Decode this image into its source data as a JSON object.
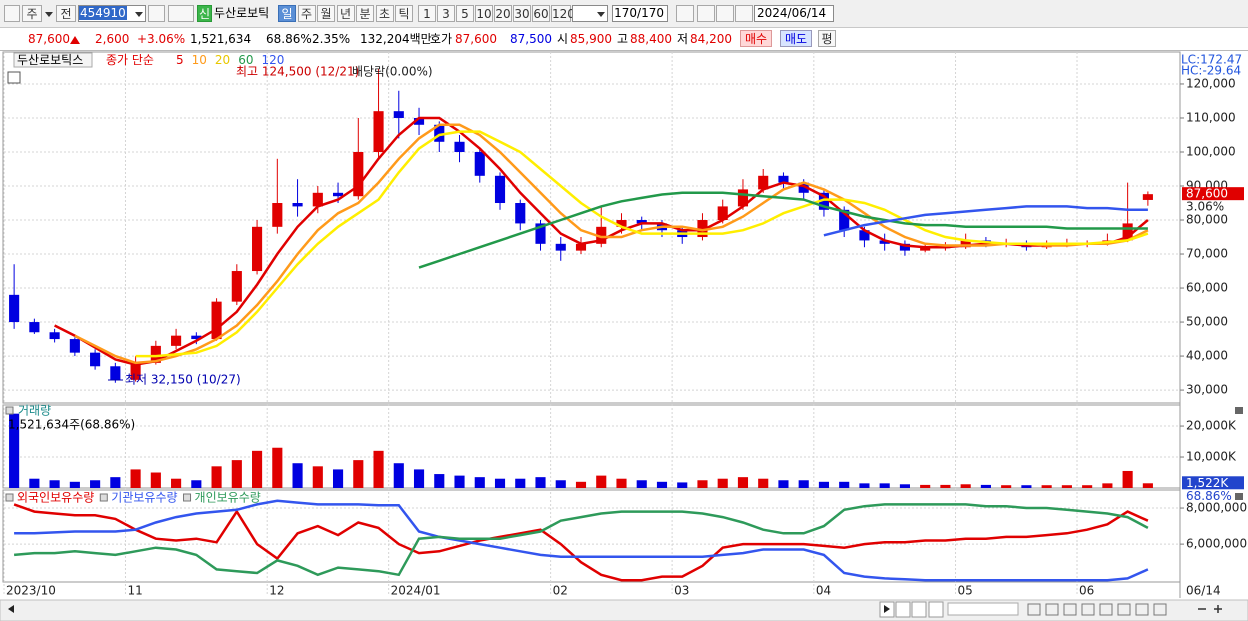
{
  "toolbar": {
    "market": "주",
    "scope": "전",
    "code": "454910",
    "badge": "신",
    "name": "두산로보틱",
    "periods": [
      "일",
      "주",
      "월",
      "년",
      "분",
      "초",
      "틱"
    ],
    "intervals": [
      "1",
      "3",
      "5",
      "10",
      "20",
      "30",
      "60",
      "120"
    ],
    "count": "170/170",
    "date": "2024/06/14"
  },
  "quote": {
    "price": "87,600",
    "change": "2,600",
    "rate": "+3.06%",
    "volume": "1,521,634",
    "turnover": "68.86%",
    "ratio": "2.35%",
    "amount": "132,204백만",
    "bid_label": "호가",
    "ask": "87,600",
    "bid": "87,500",
    "open_label": "시",
    "open": "85,900",
    "high_label": "고",
    "high": "88,400",
    "low_label": "저",
    "low": "84,200",
    "buy": "매수",
    "sell": "매도",
    "avg": "평"
  },
  "chart_data": [
    {
      "type": "candlestick",
      "legend_name": "두산로보틱스",
      "legend_label": "종가 단순",
      "annotations": [
        "최고 124,500 (12/21)",
        "배당락(0.00%)",
        "최저 32,150 (10/27)"
      ],
      "lc": "LC:172.47",
      "hc": "HC:-29.64",
      "up_color": "#e00000",
      "down_color": "#0000e0",
      "open": [
        58000,
        50000,
        47000,
        45000,
        41000,
        37000,
        33000,
        38000,
        43000,
        46000,
        45000,
        56000,
        65000,
        78000,
        85000,
        84000,
        88000,
        87000,
        100000,
        112000,
        110000,
        108000,
        103000,
        100000,
        93000,
        85000,
        79000,
        73000,
        71000,
        73000,
        78000,
        80000,
        79000,
        77000,
        75000,
        80000,
        84000,
        89000,
        93000,
        91000,
        88000,
        83000,
        77000,
        74000,
        73000,
        71000,
        72000,
        72000,
        74000,
        73000,
        73000,
        72000,
        73000,
        73000,
        73000,
        74000,
        85900
      ],
      "high": [
        67000,
        51000,
        48000,
        45500,
        42000,
        38000,
        40000,
        44500,
        48000,
        47000,
        57000,
        67000,
        80000,
        98000,
        92000,
        90000,
        91000,
        110000,
        124500,
        118000,
        113000,
        109000,
        105000,
        101000,
        94000,
        86000,
        80000,
        75000,
        75000,
        84000,
        82000,
        81000,
        80000,
        78000,
        82000,
        86000,
        92000,
        95000,
        94000,
        92000,
        89000,
        84000,
        78000,
        76000,
        74000,
        73000,
        73500,
        76000,
        75000,
        74500,
        74000,
        74000,
        74500,
        74000,
        76000,
        91000,
        88400
      ],
      "low": [
        48000,
        46500,
        44000,
        40000,
        36000,
        32150,
        32500,
        37500,
        42000,
        43500,
        44500,
        55000,
        64000,
        76000,
        81000,
        82000,
        85000,
        86000,
        98000,
        104000,
        105000,
        100000,
        97000,
        91000,
        83000,
        77000,
        71000,
        68000,
        70000,
        72000,
        76000,
        77000,
        75000,
        73000,
        74000,
        79000,
        83000,
        88000,
        89000,
        86000,
        81000,
        75000,
        72000,
        71000,
        69500,
        70500,
        71000,
        71500,
        72000,
        72000,
        71000,
        71500,
        72000,
        72000,
        72500,
        73500,
        84200
      ],
      "close": [
        50000,
        47000,
        45000,
        41000,
        37000,
        33000,
        38000,
        43000,
        46000,
        45000,
        56000,
        65000,
        78000,
        85000,
        84000,
        88000,
        87000,
        100000,
        112000,
        110000,
        108000,
        103000,
        100000,
        93000,
        85000,
        79000,
        73000,
        71000,
        73000,
        78000,
        80000,
        79000,
        77000,
        75000,
        80000,
        84000,
        89000,
        93000,
        91000,
        88000,
        83000,
        77000,
        74000,
        73000,
        71000,
        72000,
        72000,
        74000,
        73000,
        73000,
        72000,
        73000,
        73000,
        73000,
        74000,
        79000,
        87600
      ],
      "series": [
        {
          "name": "5",
          "color": "#e00000",
          "values": [
            null,
            null,
            49000,
            46000,
            42500,
            39000,
            37500,
            38500,
            41500,
            44500,
            48000,
            53000,
            61000,
            70000,
            78000,
            84000,
            86000,
            90000,
            98000,
            105000,
            110000,
            110000,
            106000,
            101000,
            95000,
            88000,
            82000,
            76000,
            73000,
            74000,
            77000,
            79000,
            79000,
            77000,
            77000,
            80000,
            84000,
            89000,
            91000,
            90000,
            87000,
            82000,
            77000,
            74000,
            72500,
            72000,
            72000,
            72500,
            73000,
            73000,
            72500,
            72500,
            73000,
            73000,
            73000,
            75000,
            80000
          ]
        },
        {
          "name": "10",
          "color": "#ff9a1a",
          "values": [
            null,
            null,
            null,
            46000,
            43000,
            40000,
            38000,
            38500,
            40000,
            42000,
            45000,
            49000,
            55000,
            62000,
            70000,
            77000,
            82000,
            85000,
            91000,
            98000,
            104000,
            108000,
            108000,
            105000,
            100000,
            94000,
            88000,
            82000,
            77000,
            75000,
            75000,
            77000,
            78000,
            78000,
            77000,
            78000,
            81000,
            85000,
            89000,
            91000,
            89000,
            86000,
            82000,
            78000,
            75000,
            73000,
            72500,
            72500,
            72500,
            73000,
            73000,
            72500,
            72500,
            73000,
            73000,
            74000,
            77000
          ]
        },
        {
          "name": "20",
          "color": "#ffee00",
          "values": [
            null,
            null,
            null,
            null,
            null,
            null,
            40000,
            40000,
            40500,
            41000,
            43000,
            47000,
            53000,
            60000,
            67000,
            73000,
            78000,
            82000,
            86000,
            94000,
            101000,
            105000,
            106000,
            106000,
            103000,
            100000,
            95000,
            90000,
            85000,
            81000,
            78000,
            76000,
            76000,
            76000,
            76000,
            76000,
            77000,
            79000,
            82000,
            84000,
            86000,
            86000,
            85000,
            83000,
            80000,
            77000,
            75000,
            74000,
            73500,
            73000,
            73000,
            73000,
            73000,
            73000,
            73500,
            74000,
            76000
          ]
        },
        {
          "name": "60",
          "color": "#22994a",
          "values": [
            null,
            null,
            null,
            null,
            null,
            null,
            null,
            null,
            null,
            null,
            null,
            null,
            null,
            null,
            null,
            null,
            null,
            null,
            null,
            null,
            66000,
            68000,
            70000,
            72000,
            74000,
            76000,
            78000,
            80000,
            82000,
            84000,
            85500,
            86500,
            87500,
            88000,
            88000,
            88000,
            87500,
            87000,
            86500,
            86000,
            84000,
            82500,
            81000,
            80000,
            79000,
            78500,
            78500,
            78000,
            78000,
            78000,
            78000,
            78000,
            77500,
            77500,
            77500,
            77500,
            77500
          ]
        },
        {
          "name": "120",
          "color": "#3355ee",
          "values": [
            null,
            null,
            null,
            null,
            null,
            null,
            null,
            null,
            null,
            null,
            null,
            null,
            null,
            null,
            null,
            null,
            null,
            null,
            null,
            null,
            null,
            null,
            null,
            null,
            null,
            null,
            null,
            null,
            null,
            null,
            null,
            null,
            null,
            null,
            null,
            null,
            null,
            null,
            null,
            null,
            75500,
            77000,
            78500,
            79500,
            80500,
            81500,
            82000,
            82500,
            83000,
            83500,
            84000,
            84000,
            84000,
            83500,
            83500,
            83000,
            83000
          ]
        }
      ],
      "ylim": [
        26200,
        129400
      ],
      "yticks": [
        {
          "value": 30000,
          "label": "30,000"
        },
        {
          "value": 40000,
          "label": "40,000"
        },
        {
          "value": 50000,
          "label": "50,000"
        },
        {
          "value": 60000,
          "label": "60,000"
        },
        {
          "value": 70000,
          "label": "70,000"
        },
        {
          "value": 80000,
          "label": "80,000"
        },
        {
          "value": 90000,
          "label": "90,000"
        },
        {
          "value": 100000,
          "label": "100,000"
        },
        {
          "value": 110000,
          "label": "110,000"
        },
        {
          "value": 120000,
          "label": "120,000"
        }
      ],
      "grid": true,
      "marker": {
        "value": 87600,
        "label": "87,600"
      },
      "marker_sub": "3.06%"
    },
    {
      "type": "bar",
      "title": "거래량",
      "subtitle": "1,521,634주(68.86%)",
      "values": [
        24000,
        3000,
        2500,
        2000,
        2500,
        3500,
        6000,
        5000,
        3000,
        2500,
        7000,
        9000,
        12000,
        13000,
        8000,
        7000,
        6000,
        9000,
        12000,
        8000,
        6000,
        4500,
        4000,
        3500,
        3000,
        3000,
        3500,
        2500,
        2000,
        4000,
        3000,
        2500,
        2000,
        1800,
        2500,
        3000,
        3500,
        3000,
        2500,
        2500,
        2000,
        2000,
        1500,
        1500,
        1200,
        1000,
        1000,
        1200,
        1000,
        900,
        900,
        900,
        900,
        900,
        1500,
        5500,
        1522
      ],
      "ylim": [
        0,
        26800
      ],
      "yticks": [
        {
          "value": 10000,
          "label": "10,000K"
        },
        {
          "value": 20000,
          "label": "20,000K"
        }
      ],
      "grid": true,
      "marker": {
        "value": 1522,
        "label": "1,522K"
      },
      "marker_sub": "68.86%"
    },
    {
      "type": "line",
      "categories": [
        "2023/10",
        null,
        null,
        null,
        null,
        null,
        "11",
        null,
        null,
        null,
        null,
        null,
        null,
        "12",
        null,
        null,
        null,
        null,
        null,
        "2024/01",
        null,
        null,
        null,
        null,
        null,
        null,
        null,
        "02",
        null,
        null,
        null,
        null,
        null,
        "03",
        null,
        null,
        null,
        null,
        null,
        null,
        "04",
        null,
        null,
        null,
        null,
        null,
        null,
        "05",
        null,
        null,
        null,
        null,
        null,
        "06",
        null,
        null,
        null
      ],
      "end_label": "06/14",
      "series": [
        {
          "name": "외국인보유수량",
          "color": "#e00000",
          "values": [
            8200000,
            7800000,
            7700000,
            7600000,
            7600000,
            7400000,
            6800000,
            6300000,
            6200000,
            6300000,
            6100000,
            7800000,
            6000000,
            5200000,
            6600000,
            7000000,
            6500000,
            7200000,
            6900000,
            6000000,
            5500000,
            5600000,
            5900000,
            6200000,
            6400000,
            6600000,
            6800000,
            6000000,
            5000000,
            4300000,
            4000000,
            4000000,
            4200000,
            4200000,
            4800000,
            5800000,
            6000000,
            6000000,
            6000000,
            6000000,
            5900000,
            5800000,
            6000000,
            6100000,
            6100000,
            6200000,
            6200000,
            6300000,
            6300000,
            6400000,
            6400000,
            6500000,
            6600000,
            6800000,
            7100000,
            7800000,
            7300000
          ]
        },
        {
          "name": "기관보유수량",
          "color": "#3355ee",
          "values": [
            6600000,
            6600000,
            6650000,
            6700000,
            6700000,
            6700000,
            6800000,
            7200000,
            7500000,
            7700000,
            7800000,
            7900000,
            8200000,
            8400000,
            8300000,
            8200000,
            8200000,
            8200000,
            8150000,
            8150000,
            6700000,
            6400000,
            6200000,
            6000000,
            5800000,
            5600000,
            5400000,
            5300000,
            5300000,
            5300000,
            5300000,
            5300000,
            5300000,
            5300000,
            5300000,
            5400000,
            5500000,
            5700000,
            5700000,
            5700000,
            5400000,
            4400000,
            4200000,
            4100000,
            4050000,
            4000000,
            4000000,
            4000000,
            4000000,
            4000000,
            4000000,
            4000000,
            4000000,
            4000000,
            4000000,
            4100000,
            4600000
          ]
        },
        {
          "name": "개인보유수량",
          "color": "#2e9a5a",
          "values": [
            5400000,
            5500000,
            5500000,
            5600000,
            5500000,
            5400000,
            5600000,
            5800000,
            5700000,
            5400000,
            4600000,
            4500000,
            4400000,
            5100000,
            4800000,
            4300000,
            4700000,
            4600000,
            4500000,
            4300000,
            6300000,
            6400000,
            6300000,
            6300000,
            6300000,
            6500000,
            6700000,
            7300000,
            7500000,
            7700000,
            7800000,
            7800000,
            7800000,
            7800000,
            7700000,
            7500000,
            7200000,
            6800000,
            6600000,
            6600000,
            7000000,
            7900000,
            8100000,
            8200000,
            8200000,
            8200000,
            8200000,
            8200000,
            8100000,
            8100000,
            8000000,
            8000000,
            7900000,
            7800000,
            7700000,
            7500000,
            6900000
          ]
        }
      ],
      "ylim": [
        3900000,
        9000000
      ],
      "yticks": [
        {
          "value": 6000000,
          "label": "6,000,000"
        },
        {
          "value": 8000000,
          "label": "8,000,000"
        }
      ],
      "grid": true
    }
  ]
}
